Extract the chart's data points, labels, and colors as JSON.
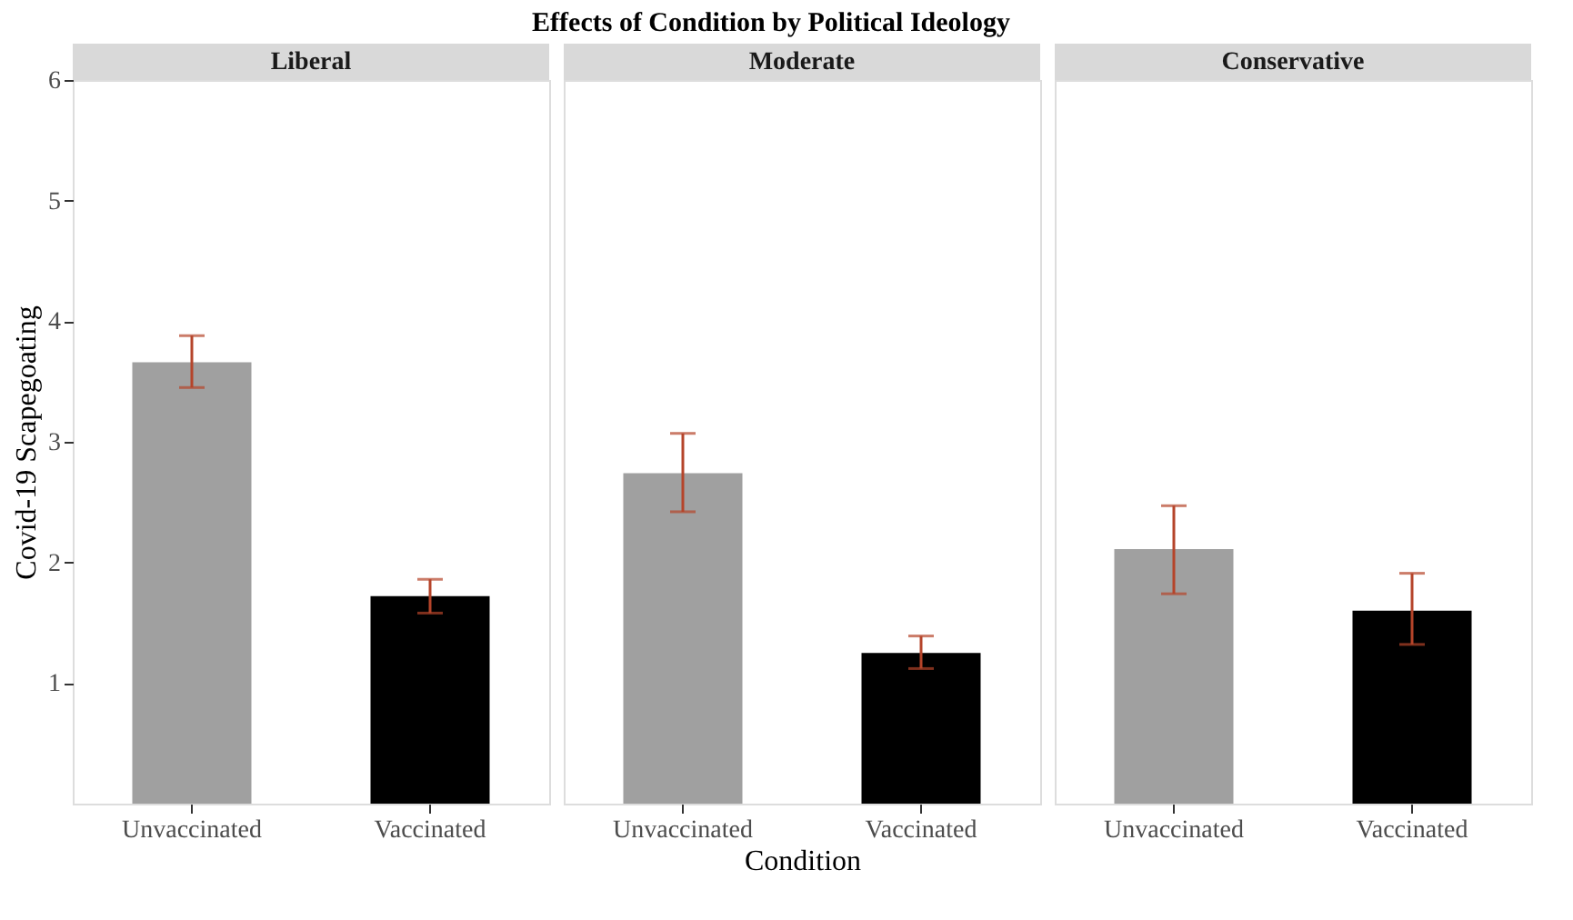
{
  "chart_data": [
    {
      "type": "bar",
      "title": "Liberal",
      "ylabel": "Covid-19 Scapegoating",
      "annotations": [
        "Effects of Condition by Political Ideology"
      ],
      "categories": [
        "Unvaccinated",
        "Vaccinated"
      ],
      "values": [
        3.66,
        1.72
      ],
      "colors": [
        "#a0a0a0",
        "#000000"
      ],
      "errors": [
        [
          3.45,
          3.88
        ],
        [
          1.58,
          1.86
        ]
      ],
      "ylim": [
        0,
        6
      ],
      "yticks": [
        1,
        2,
        3,
        4,
        5,
        6
      ],
      "grid": false
    },
    {
      "type": "bar",
      "title": "Moderate",
      "xlabel": "Condition",
      "categories": [
        "Unvaccinated",
        "Vaccinated"
      ],
      "values": [
        2.74,
        1.25
      ],
      "colors": [
        "#a0a0a0",
        "#000000"
      ],
      "errors": [
        [
          2.42,
          3.07
        ],
        [
          1.12,
          1.39
        ]
      ],
      "ylim": [
        0,
        6
      ],
      "yticks": [
        1,
        2,
        3,
        4,
        5,
        6
      ],
      "grid": false,
      "tick_labels": "x"
    },
    {
      "type": "bar",
      "title": "Conservative",
      "categories": [
        "Unvaccinated",
        "Vaccinated"
      ],
      "values": [
        2.11,
        1.6
      ],
      "colors": [
        "#a0a0a0",
        "#000000"
      ],
      "errors": [
        [
          1.74,
          2.47
        ],
        [
          1.32,
          1.91
        ]
      ],
      "ylim": [
        0,
        6
      ],
      "yticks": [
        1,
        2,
        3,
        4,
        5,
        6
      ],
      "grid": false,
      "tick_labels": "x"
    }
  ]
}
